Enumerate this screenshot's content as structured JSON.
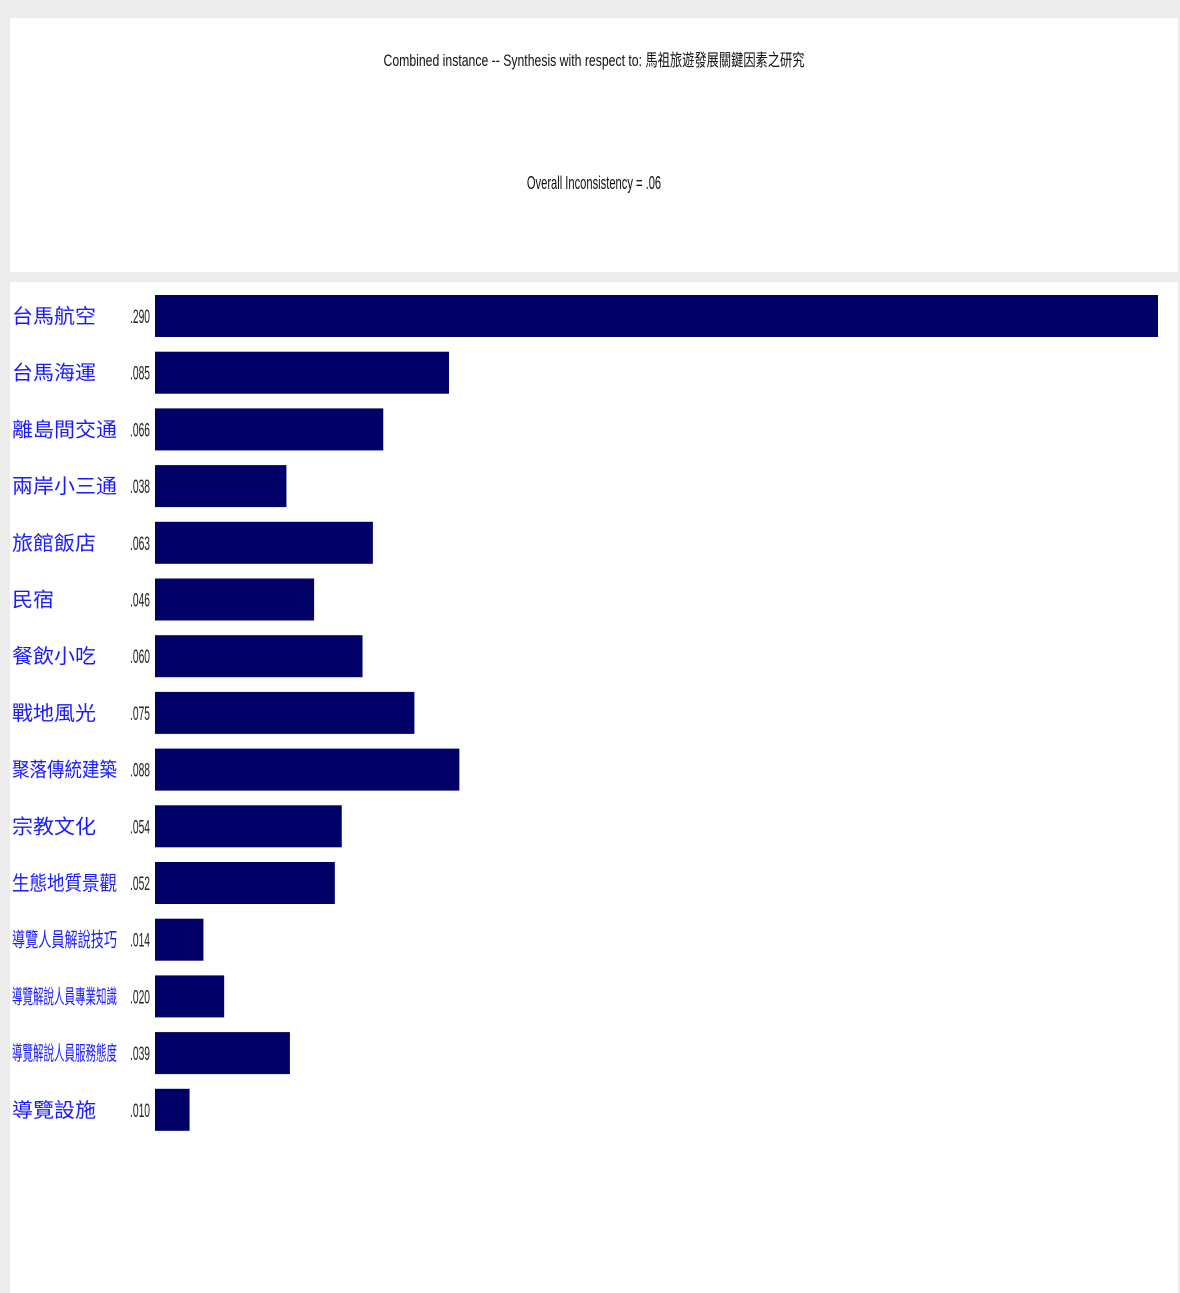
{
  "header": {
    "title": "Combined instance -- Synthesis with respect to: 馬祖旅遊發展關鍵因素之研究",
    "subtitle": "Overall Inconsistency = .06"
  },
  "chart_data": {
    "type": "bar",
    "orientation": "horizontal",
    "categories": [
      "台馬航空",
      "台馬海運",
      "離島間交通",
      "兩岸小三通",
      "旅館飯店",
      "民宿",
      "餐飲小吃",
      "戰地風光",
      "聚落傳統建築",
      "宗教文化",
      "生態地質景觀",
      "導覽人員解說技巧",
      "導覽解說人員專業知識",
      "導覽解說人員服務態度",
      "導覽設施"
    ],
    "value_labels": [
      ".290",
      ".085",
      ".066",
      ".038",
      ".063",
      ".046",
      ".060",
      ".075",
      ".088",
      ".054",
      ".052",
      ".014",
      ".020",
      ".039",
      ".010"
    ],
    "values": [
      0.29,
      0.085,
      0.066,
      0.038,
      0.063,
      0.046,
      0.06,
      0.075,
      0.088,
      0.054,
      0.052,
      0.014,
      0.02,
      0.039,
      0.01
    ],
    "xlim": [
      0,
      0.29
    ],
    "grid": false,
    "bar_color": "#000066",
    "label_color": "#1a1aff",
    "value_color": "#222222"
  }
}
